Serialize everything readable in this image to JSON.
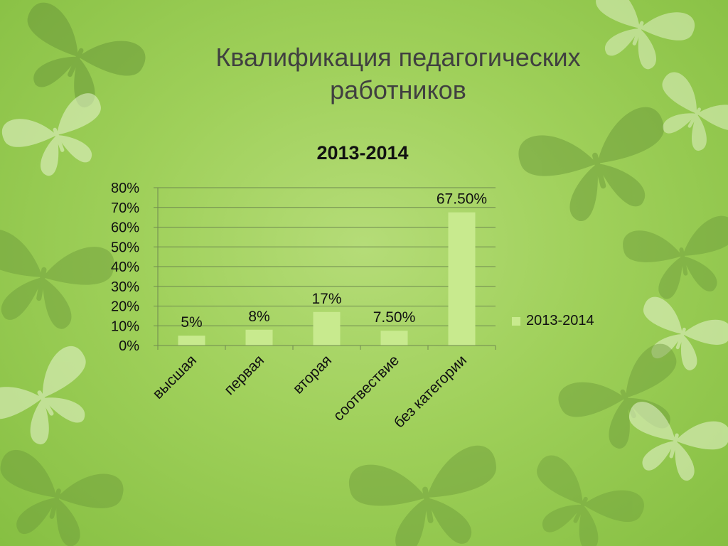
{
  "slide": {
    "title_line1": "Квалификация педагогических",
    "title_line2": "работников"
  },
  "chart_data": {
    "type": "bar",
    "title": "2013-2014",
    "categories": [
      "высшая",
      "первая",
      "вторая",
      "соотвествие",
      "без категории"
    ],
    "series": [
      {
        "name": "2013-2014",
        "values": [
          5,
          8,
          17,
          7.5,
          67.5
        ]
      }
    ],
    "data_labels": [
      "5%",
      "8%",
      "17%",
      "7.50%",
      "67.50%"
    ],
    "ytick_labels": [
      "0%",
      "10%",
      "20%",
      "30%",
      "40%",
      "50%",
      "60%",
      "70%",
      "80%"
    ],
    "ylim": [
      0,
      80
    ],
    "grid": true,
    "legend_position": "right",
    "bar_color": "#c8ea8e",
    "grid_color": "#6f8a4f"
  }
}
